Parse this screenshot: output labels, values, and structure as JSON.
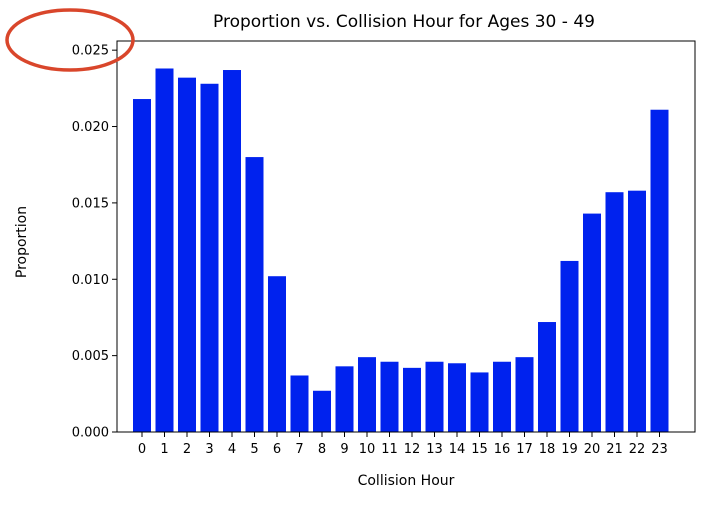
{
  "chart_data": {
    "type": "bar",
    "title": "Proportion vs. Collision Hour for Ages 30 - 49",
    "xlabel": "Collision Hour",
    "ylabel": "Proportion",
    "categories": [
      "0",
      "1",
      "2",
      "3",
      "4",
      "5",
      "6",
      "7",
      "8",
      "9",
      "10",
      "11",
      "12",
      "13",
      "14",
      "15",
      "16",
      "17",
      "18",
      "19",
      "20",
      "21",
      "22",
      "23"
    ],
    "values": [
      0.0218,
      0.0238,
      0.0232,
      0.0228,
      0.0237,
      0.018,
      0.0102,
      0.0037,
      0.0027,
      0.0043,
      0.0049,
      0.0046,
      0.0042,
      0.0046,
      0.0045,
      0.0039,
      0.0046,
      0.0049,
      0.0072,
      0.0112,
      0.0143,
      0.0157,
      0.0158,
      0.0211
    ],
    "ylim": [
      0,
      0.0256
    ],
    "yticks": [
      "0.000",
      "0.005",
      "0.010",
      "0.015",
      "0.020",
      "0.025"
    ],
    "ytick_values": [
      0,
      0.005,
      0.01,
      0.015,
      0.02,
      0.025
    ],
    "grid": false,
    "bar_color": "#0022ee",
    "annotation": {
      "shape": "ellipse",
      "color": "#d9462b",
      "target": "y tick 0.025"
    }
  }
}
